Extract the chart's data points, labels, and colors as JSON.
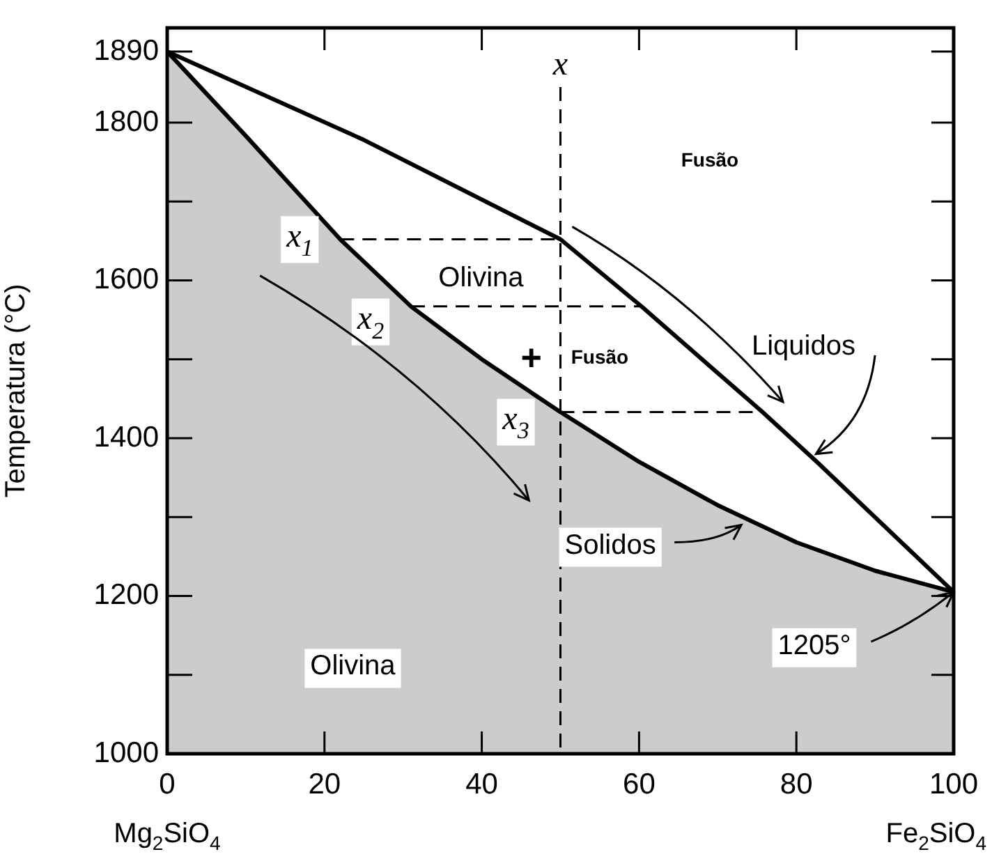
{
  "chart_data": {
    "type": "line",
    "ylabel": "Temperatura (°C)",
    "xlim": [
      0,
      100
    ],
    "ylim": [
      1000,
      1920
    ],
    "xticks": [
      0,
      20,
      40,
      60,
      80,
      100
    ],
    "yticks": [
      1000,
      {
        "value": 1100,
        "label": null
      },
      1200,
      {
        "value": 1300,
        "label": null
      },
      1400,
      {
        "value": 1500,
        "label": null
      },
      1600,
      {
        "value": 1700,
        "label": null
      },
      1800,
      1890
    ],
    "grid": false,
    "legend": false,
    "marker": "none",
    "series": [
      {
        "type": "area",
        "color": "#000000",
        "x": [
          0,
          10,
          22,
          31,
          40,
          50,
          60,
          70,
          80,
          90,
          100
        ],
        "values": [
          1890,
          1783,
          1652,
          1567,
          1500,
          1433,
          1370,
          1315,
          1268,
          1232,
          1205
        ]
      },
      {
        "type": "line",
        "color": "#000000",
        "x": [
          0,
          25,
          50,
          60.3,
          75.7,
          82.7,
          100
        ],
        "values": [
          1890,
          1778,
          1652,
          1567,
          1433,
          1369,
          1205
        ]
      },
      {
        "type": "line",
        "color": "#000000",
        "line_style": "dashed",
        "x": [
          22,
          50
        ],
        "values": [
          1652,
          1652
        ]
      },
      {
        "type": "line",
        "color": "#000000",
        "line_style": "dashed",
        "x": [
          31,
          60.3
        ],
        "values": [
          1567,
          1567
        ]
      },
      {
        "type": "line",
        "color": "#000000",
        "line_style": "dashed",
        "x": [
          50,
          75.7
        ],
        "values": [
          1433,
          1433
        ]
      },
      {
        "type": "line",
        "color": "#000000",
        "line_style": "dashed",
        "x": [
          50,
          50
        ],
        "values": [
          1845,
          1000
        ]
      }
    ],
    "annotations": [
      "x",
      "Fusão",
      "Olivina",
      {
        "text": "x$_{1}$",
        "x": 22,
        "y": 1652
      },
      {
        "text": "x$_{2}$",
        "x": 31,
        "y": 1567
      },
      {
        "text": "x$_{3}$",
        "x": 50,
        "y": 1433
      },
      "+",
      "Fusão",
      {
        "text": "Liquidos",
        "x": 82.5,
        "y": 1380
      },
      {
        "text": "Solidos",
        "x": 73,
        "y": 1290
      },
      "Olivina",
      {
        "text": "1205°",
        "x": 100,
        "y": 1205
      },
      "Mg$_{2}$SiO$_{4}$",
      "Fe$_{2}$SiO$_{4}$"
    ]
  }
}
